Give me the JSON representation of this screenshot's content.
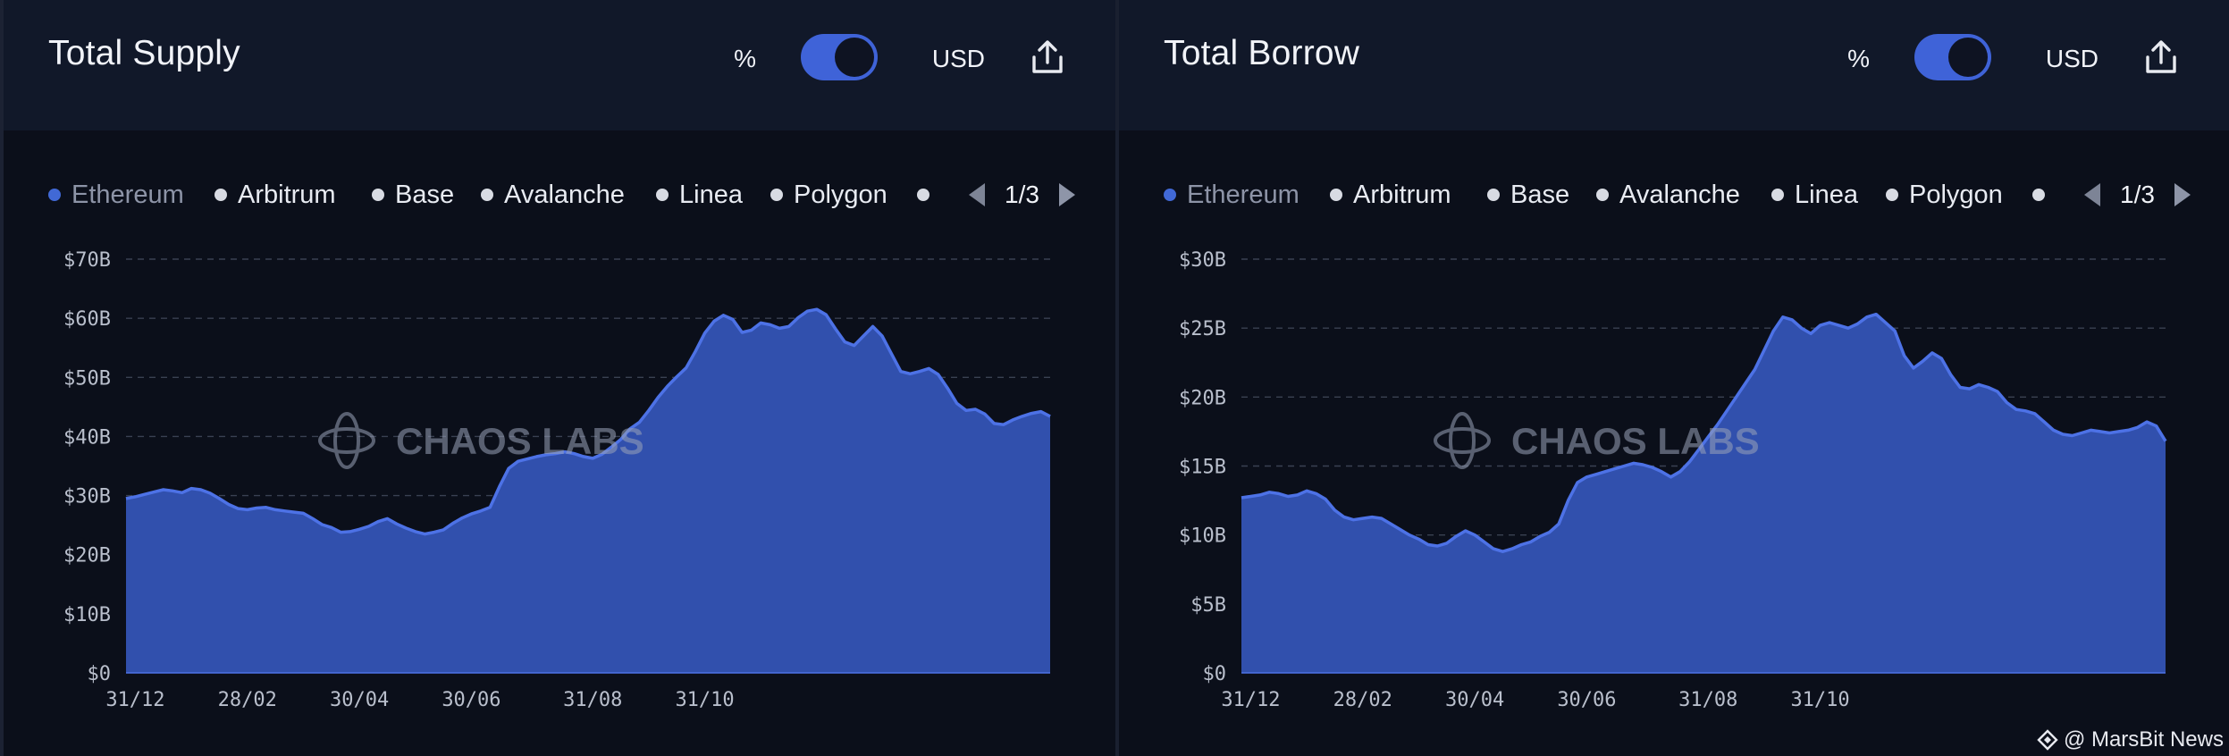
{
  "toggle": {
    "pct_label": "%",
    "usd_label": "USD",
    "state": "USD"
  },
  "legend": {
    "items": [
      "Ethereum",
      "Arbitrum",
      "Base",
      "Avalanche",
      "Linea",
      "Polygon",
      ""
    ],
    "page": "1/3"
  },
  "watermark": {
    "chart_logo_text": "CHAOS LABS",
    "footer": "@ MarsBit News"
  },
  "colors": {
    "area_fill": "#3150ad",
    "area_line": "#4d72e6",
    "active_legend_dot": "#4169d6",
    "toggle": "#3f63d8"
  },
  "chart_data": [
    {
      "type": "area",
      "title": "Total Supply",
      "series": [
        {
          "name": "Ethereum",
          "values": [
            29.5,
            29.8,
            30.2,
            30.6,
            31.0,
            30.8,
            30.5,
            31.2,
            31.0,
            30.4,
            29.5,
            28.5,
            27.8,
            27.6,
            27.9,
            28.0,
            27.6,
            27.4,
            27.2,
            27.0,
            26.1,
            25.1,
            24.6,
            23.8,
            23.9,
            24.3,
            24.8,
            25.6,
            26.1,
            25.2,
            24.5,
            23.9,
            23.5,
            23.8,
            24.2,
            25.3,
            26.2,
            26.9,
            27.4,
            28.0,
            31.5,
            34.6,
            35.8,
            36.2,
            36.6,
            36.9,
            37.1,
            37.4,
            37.1,
            36.6,
            36.3,
            37.0,
            38.2,
            39.5,
            41.3,
            42.4,
            44.4,
            46.6,
            48.5,
            50.1,
            51.6,
            54.4,
            57.5,
            59.5,
            60.5,
            59.8,
            57.6,
            58.0,
            59.2,
            58.9,
            58.3,
            58.6,
            60.1,
            61.2,
            61.5,
            60.6,
            58.2,
            56.0,
            55.4,
            57.0,
            58.6,
            57.0,
            54.0,
            51.0,
            50.6,
            51.0,
            51.5,
            50.5,
            48.2,
            45.6,
            44.4,
            44.6,
            43.8,
            42.2,
            42.0,
            42.8,
            43.4,
            43.9,
            44.2,
            43.4
          ]
        }
      ],
      "x_tick_labels": [
        "31/12",
        "28/02",
        "30/04",
        "30/06",
        "31/08",
        "31/10"
      ],
      "x_tick_positions": [
        1,
        13,
        25,
        37,
        50,
        62
      ],
      "y_tick_labels": [
        "$0",
        "$10B",
        "$20B",
        "$30B",
        "$40B",
        "$50B",
        "$60B",
        "$70B"
      ],
      "ylim": [
        0,
        70
      ],
      "ylabel": "",
      "xlabel": "",
      "grid": "horizontal-dashed",
      "legend_position": "top"
    },
    {
      "type": "area",
      "title": "Total Borrow",
      "series": [
        {
          "name": "Ethereum",
          "values": [
            12.7,
            12.8,
            12.9,
            13.1,
            13.0,
            12.8,
            12.9,
            13.2,
            13.0,
            12.6,
            11.8,
            11.3,
            11.1,
            11.2,
            11.3,
            11.2,
            10.8,
            10.4,
            10.0,
            9.7,
            9.3,
            9.2,
            9.4,
            9.9,
            10.3,
            10.0,
            9.5,
            9.0,
            8.8,
            9.0,
            9.3,
            9.5,
            9.9,
            10.2,
            10.8,
            12.5,
            13.8,
            14.2,
            14.4,
            14.6,
            14.8,
            15.0,
            15.2,
            15.1,
            14.9,
            14.6,
            14.2,
            14.6,
            15.3,
            16.2,
            17.1,
            18.0,
            19.0,
            20.0,
            21.0,
            22.0,
            23.4,
            24.8,
            25.8,
            25.6,
            25.0,
            24.6,
            25.2,
            25.4,
            25.2,
            25.0,
            25.3,
            25.8,
            26.0,
            25.4,
            24.8,
            23.0,
            22.1,
            22.6,
            23.2,
            22.8,
            21.6,
            20.7,
            20.6,
            20.9,
            20.7,
            20.4,
            19.6,
            19.1,
            19.0,
            18.8,
            18.2,
            17.6,
            17.3,
            17.2,
            17.4,
            17.6,
            17.5,
            17.4,
            17.5,
            17.6,
            17.8,
            18.2,
            17.9,
            16.8
          ]
        }
      ],
      "x_tick_labels": [
        "31/12",
        "28/02",
        "30/04",
        "30/06",
        "31/08",
        "31/10"
      ],
      "x_tick_positions": [
        1,
        13,
        25,
        37,
        50,
        62
      ],
      "y_tick_labels": [
        "$0",
        "$5B",
        "$10B",
        "$15B",
        "$20B",
        "$25B",
        "$30B"
      ],
      "ylim": [
        0,
        30
      ],
      "ylabel": "",
      "xlabel": "",
      "grid": "horizontal-dashed",
      "legend_position": "top"
    }
  ]
}
